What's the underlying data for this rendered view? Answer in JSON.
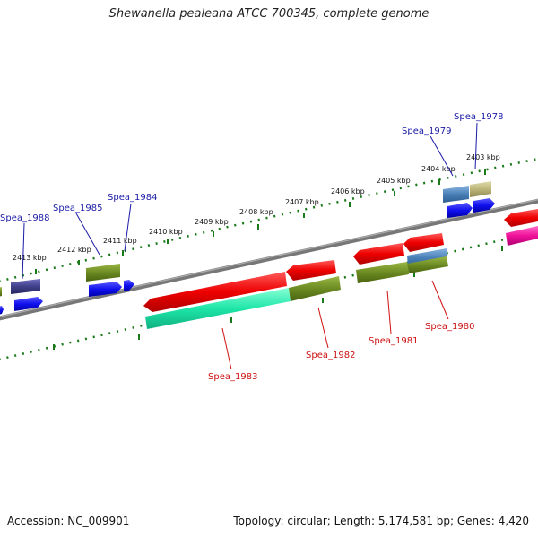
{
  "title": "Shewanella pealeana ATCC 700345, complete genome",
  "footer": {
    "accession": "Accession: NC_009901",
    "stats": "Topology: circular; Length: 5,174,581 bp; Genes: 4,420"
  },
  "colors": {
    "backbone": "#777777",
    "tick": "#1a7a1a",
    "label_top": "#1a1aa6",
    "label_bottom": "#cc1111"
  },
  "ruler_labels": [
    "2413 kbp",
    "2412 kbp",
    "2411 kbp",
    "2410 kbp",
    "2409 kbp",
    "2408 kbp",
    "2407 kbp",
    "2406 kbp",
    "2405 kbp",
    "2404 kbp",
    "2403 kbp"
  ],
  "genes_top": [
    {
      "name": "Spea_1988"
    },
    {
      "name": "Spea_1985"
    },
    {
      "name": "Spea_1984"
    },
    {
      "name": "Spea_1979"
    },
    {
      "name": "Spea_1978"
    }
  ],
  "genes_bottom": [
    {
      "name": "Spea_1983"
    },
    {
      "name": "Spea_1982"
    },
    {
      "name": "Spea_1981"
    },
    {
      "name": "Spea_1980"
    }
  ]
}
